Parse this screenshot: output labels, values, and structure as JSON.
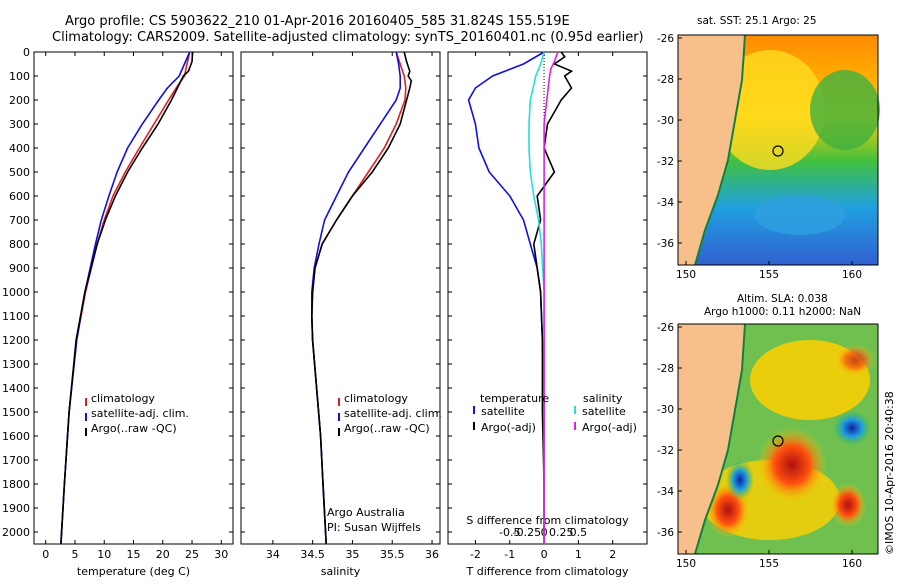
{
  "header": {
    "line1": "Argo profile: CS 5903622_210 01-Apr-2016 20160405_585 31.824S 155.519E",
    "line2": "Climatology: CARS2009. Satellite-adjusted climatology: synTS_20160401.nc (0.95d earlier)"
  },
  "colors": {
    "clim": "#e02020",
    "sat": "#1010e0",
    "argo": "#000000",
    "sal_sat": "#20e0e0",
    "sal_argo": "#e020e0",
    "land": "#f7c08a",
    "coast": "#108040"
  },
  "legend": {
    "clim": "climatology",
    "sat": "satellite-adj. clim.",
    "argo": "Argo(..raw -QC)"
  },
  "diff_legend": {
    "temp_head": "temperature",
    "sal_head": "salinity",
    "temp_sat": "satellite",
    "temp_argo": "Argo(-adj)",
    "sal_sat": "satellite",
    "sal_argo": "Argo(-adj)"
  },
  "credits": {
    "line1": "Argo Australia",
    "line2": "PI: Susan Wijffels"
  },
  "footer_vertical": "©IMOS 10-Apr-2016 20:40:38",
  "maps": {
    "sst": {
      "title": "sat. SST: 25.1 Argo: 25"
    },
    "sla": {
      "title1": "Altim. SLA: 0.038",
      "title2": "Argo h1000: 0.11 h2000: NaN"
    },
    "lat_ticks": [
      "-26",
      "-28",
      "-30",
      "-32",
      "-34",
      "-36"
    ],
    "lon_ticks": [
      "150",
      "155",
      "160"
    ]
  },
  "chart_data": [
    {
      "type": "line",
      "name": "temperature-profile",
      "xlabel": "temperature (deg C)",
      "ylabel": "",
      "xlim": [
        -2,
        32
      ],
      "ylim": [
        2050,
        0
      ],
      "xticks": [
        0,
        5,
        10,
        15,
        20,
        25,
        30
      ],
      "yticks": [
        0,
        100,
        200,
        300,
        400,
        500,
        600,
        700,
        800,
        900,
        1000,
        1100,
        1200,
        1300,
        1400,
        1500,
        1600,
        1700,
        1800,
        1900,
        2000
      ],
      "series": [
        {
          "name": "climatology",
          "color": "#e02020",
          "depth": [
            0,
            100,
            150,
            200,
            300,
            400,
            500,
            600,
            700,
            800,
            1000,
            1200,
            1500,
            1800,
            2050
          ],
          "values": [
            24.6,
            23.7,
            22.3,
            21.0,
            18.5,
            16.0,
            13.6,
            11.5,
            10.0,
            8.8,
            6.8,
            5.3,
            4.0,
            3.2,
            2.6
          ]
        },
        {
          "name": "satellite-adj. clim.",
          "color": "#1010e0",
          "depth": [
            0,
            100,
            150,
            200,
            300,
            400,
            500,
            600,
            700,
            800,
            1000,
            1200,
            1500,
            1800,
            2050
          ],
          "values": [
            24.6,
            22.8,
            20.8,
            19.3,
            16.5,
            14.0,
            12.2,
            10.8,
            9.5,
            8.5,
            6.7,
            5.3,
            4.0,
            3.2,
            2.6
          ]
        },
        {
          "name": "Argo(..raw -QC)",
          "color": "#000000",
          "depth": [
            0,
            40,
            80,
            100,
            150,
            200,
            300,
            400,
            500,
            600,
            700,
            800,
            1000,
            1200,
            1500,
            1800,
            2050
          ],
          "values": [
            25.1,
            25.0,
            24.4,
            23.5,
            22.5,
            21.5,
            19.2,
            16.5,
            14.0,
            11.9,
            10.2,
            8.8,
            6.7,
            5.2,
            4.0,
            3.2,
            2.6
          ]
        }
      ]
    },
    {
      "type": "line",
      "name": "salinity-profile",
      "xlabel": "salinity",
      "xlim": [
        33.6,
        36.1
      ],
      "ylim": [
        2050,
        0
      ],
      "xticks": [
        34,
        34.5,
        35,
        35.5,
        36
      ],
      "series": [
        {
          "name": "climatology",
          "color": "#e02020",
          "depth": [
            0,
            50,
            100,
            150,
            200,
            300,
            400,
            500,
            600,
            700,
            800,
            900,
            1000,
            1100,
            1200,
            1400,
            1600,
            1800,
            2050
          ],
          "values": [
            35.55,
            35.6,
            35.65,
            35.67,
            35.66,
            35.55,
            35.4,
            35.2,
            35.0,
            34.8,
            34.62,
            34.53,
            34.5,
            34.49,
            34.5,
            34.55,
            34.6,
            34.63,
            34.67
          ]
        },
        {
          "name": "satellite-adj. clim.",
          "color": "#1010e0",
          "depth": [
            0,
            50,
            100,
            150,
            200,
            300,
            400,
            500,
            600,
            700,
            800,
            900,
            1000,
            1100,
            1200,
            1400,
            1600,
            1800,
            2050
          ],
          "values": [
            35.55,
            35.58,
            35.6,
            35.6,
            35.55,
            35.35,
            35.15,
            34.95,
            34.8,
            34.65,
            34.58,
            34.52,
            34.49,
            34.49,
            34.5,
            34.55,
            34.6,
            34.63,
            34.67
          ]
        },
        {
          "name": "Argo(..raw -QC)",
          "color": "#000000",
          "depth": [
            0,
            40,
            80,
            100,
            120,
            150,
            200,
            300,
            400,
            500,
            600,
            700,
            800,
            900,
            1000,
            1100,
            1200,
            1400,
            1600,
            1800,
            2050
          ],
          "values": [
            35.65,
            35.68,
            35.72,
            35.7,
            35.74,
            35.72,
            35.68,
            35.6,
            35.45,
            35.25,
            35.0,
            34.8,
            34.62,
            34.53,
            34.5,
            34.49,
            34.5,
            34.55,
            34.6,
            34.63,
            34.67
          ]
        }
      ]
    },
    {
      "type": "line",
      "name": "difference-from-climatology",
      "xlabel": "T difference from climatology",
      "xlabel2": "S difference from climatology",
      "xlim": [
        -2.8,
        3.0
      ],
      "xticks": [
        -2,
        -1,
        0,
        1,
        2
      ],
      "sticks": [
        "-0.5",
        "-0.25",
        "0",
        "0.25",
        "0.5"
      ],
      "ylim": [
        2050,
        0
      ],
      "series": [
        {
          "name": "temperature satellite",
          "color": "#1010e0",
          "depth": [
            0,
            50,
            100,
            150,
            200,
            250,
            300,
            400,
            500,
            600,
            700,
            800,
            900,
            1000,
            1200,
            1500,
            1800,
            2050
          ],
          "values": [
            0.0,
            -0.6,
            -1.5,
            -2.0,
            -2.2,
            -2.1,
            -2.0,
            -1.9,
            -1.6,
            -1.0,
            -0.6,
            -0.4,
            -0.2,
            -0.1,
            -0.05,
            0.0,
            0.0,
            0.0
          ]
        },
        {
          "name": "temperature Argo(-adj)",
          "color": "#000000",
          "depth": [
            0,
            20,
            50,
            80,
            100,
            150,
            200,
            250,
            300,
            400,
            500,
            600,
            700,
            800,
            900,
            1000,
            1200,
            1500,
            1800,
            2050
          ],
          "values": [
            0.5,
            0.6,
            0.3,
            0.8,
            0.6,
            0.8,
            0.5,
            0.3,
            0.1,
            0.0,
            0.3,
            -0.2,
            -0.1,
            -0.3,
            -0.2,
            -0.1,
            -0.05,
            -0.05,
            0.0,
            0.0
          ]
        },
        {
          "name": "salinity satellite",
          "color": "#20e0e0",
          "depth": [
            0,
            50,
            100,
            150,
            200,
            300,
            400,
            500,
            600,
            700,
            800,
            1000,
            1500,
            2050
          ],
          "values": [
            0.0,
            -0.05,
            -0.12,
            -0.16,
            -0.2,
            -0.22,
            -0.22,
            -0.2,
            -0.15,
            -0.08,
            -0.04,
            0.0,
            0.0,
            0.0
          ]
        },
        {
          "name": "salinity Argo(-adj)",
          "color": "#e020e0",
          "depth": [
            0,
            40,
            70,
            100,
            150,
            200,
            300,
            400,
            500,
            600,
            700,
            800,
            1000,
            1500,
            2050
          ],
          "values": [
            0.2,
            0.15,
            0.1,
            0.08,
            0.06,
            0.04,
            0.0,
            0.0,
            0.0,
            0.0,
            0.0,
            0.0,
            0.0,
            0.0,
            0.0
          ]
        }
      ]
    }
  ]
}
